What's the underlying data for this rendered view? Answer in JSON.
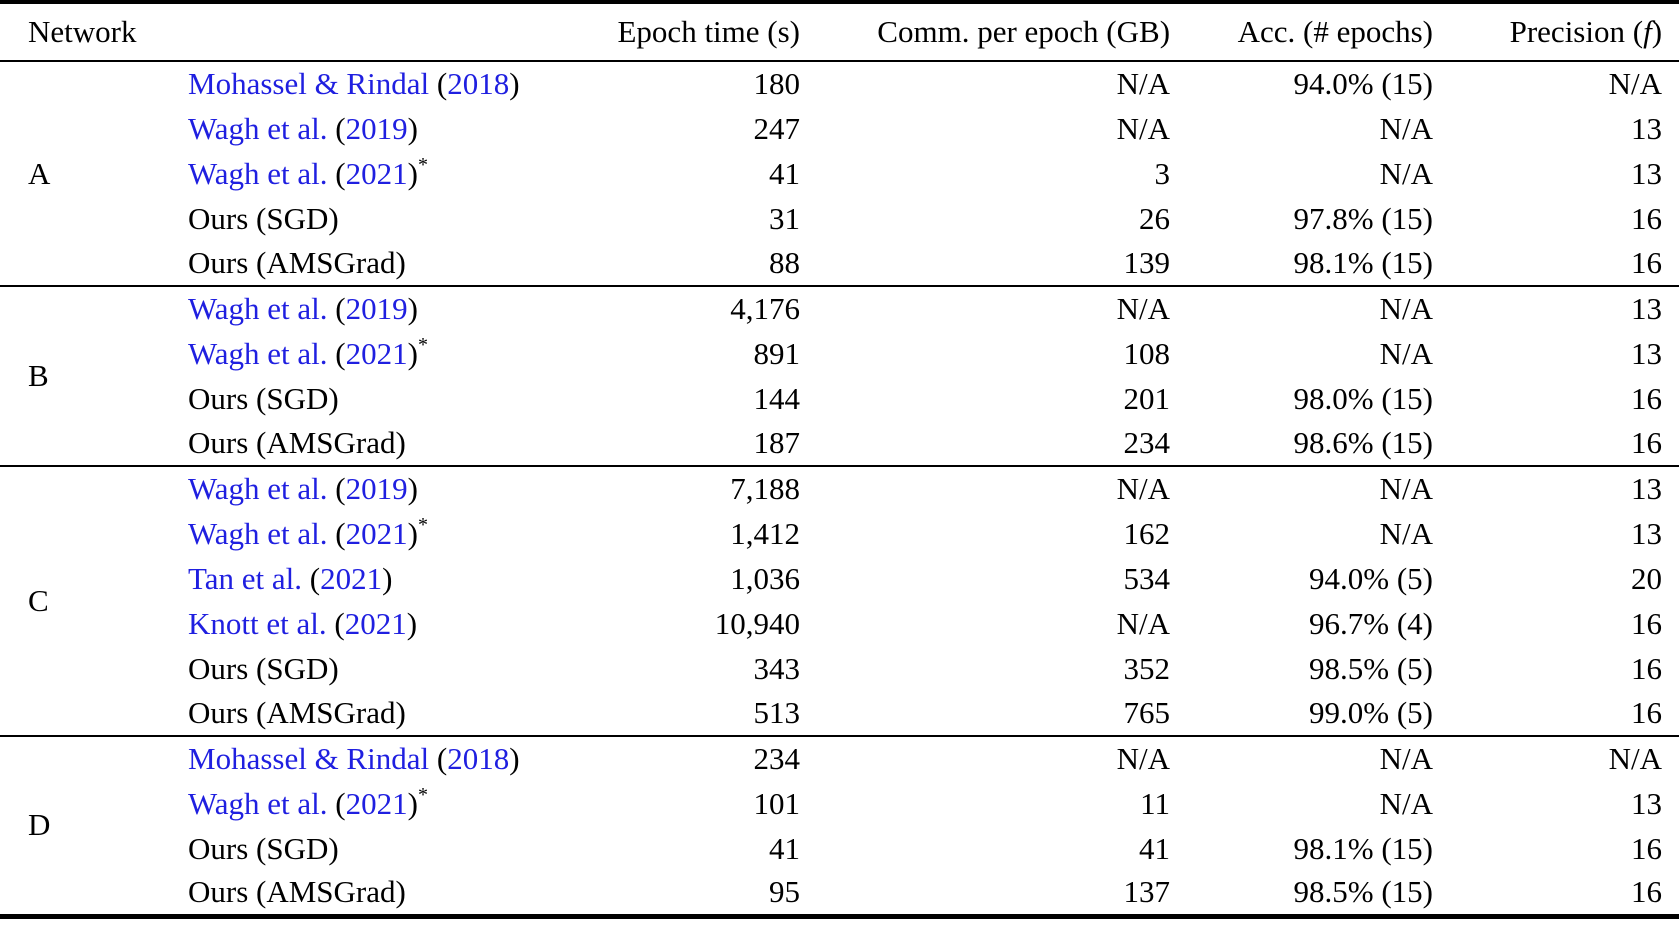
{
  "colors": {
    "background": "#ffffff",
    "text": "#000000",
    "rule": "#000000",
    "citation_link": "#1f1fe0"
  },
  "header": {
    "network": "Network",
    "epoch_time": "Epoch time (s)",
    "comm_per_epoch": "Comm. per epoch (GB)",
    "accuracy": "Acc. (# epochs)",
    "precision_prefix": "Precision (",
    "precision_symbol": "f",
    "precision_suffix": ")"
  },
  "citation_format": {
    "open": " (",
    "close": ")"
  },
  "sections": [
    {
      "network": "A",
      "rows": [
        {
          "author": "Mohassel & Rindal",
          "year": "2018",
          "epoch_time": "180",
          "comm": "N/A",
          "acc": "94.0% (15)",
          "precision": "N/A"
        },
        {
          "author": "Wagh et al.",
          "year": "2019",
          "epoch_time": "247",
          "comm": "N/A",
          "acc": "N/A",
          "precision": "13"
        },
        {
          "author": "Wagh et al.",
          "year": "2021",
          "star": "*",
          "epoch_time": "41",
          "comm": "3",
          "acc": "N/A",
          "precision": "13"
        },
        {
          "method": "Ours (SGD)",
          "epoch_time": "31",
          "comm": "26",
          "acc": "97.8% (15)",
          "precision": "16"
        },
        {
          "method": "Ours (AMSGrad)",
          "epoch_time": "88",
          "comm": "139",
          "acc": "98.1% (15)",
          "precision": "16"
        }
      ]
    },
    {
      "network": "B",
      "rows": [
        {
          "author": "Wagh et al.",
          "year": "2019",
          "epoch_time": "4,176",
          "comm": "N/A",
          "acc": "N/A",
          "precision": "13"
        },
        {
          "author": "Wagh et al.",
          "year": "2021",
          "star": "*",
          "epoch_time": "891",
          "comm": "108",
          "acc": "N/A",
          "precision": "13"
        },
        {
          "method": "Ours (SGD)",
          "epoch_time": "144",
          "comm": "201",
          "acc": "98.0% (15)",
          "precision": "16"
        },
        {
          "method": "Ours (AMSGrad)",
          "epoch_time": "187",
          "comm": "234",
          "acc": "98.6% (15)",
          "precision": "16"
        }
      ]
    },
    {
      "network": "C",
      "rows": [
        {
          "author": "Wagh et al.",
          "year": "2019",
          "epoch_time": "7,188",
          "comm": "N/A",
          "acc": "N/A",
          "precision": "13"
        },
        {
          "author": "Wagh et al.",
          "year": "2021",
          "star": "*",
          "epoch_time": "1,412",
          "comm": "162",
          "acc": "N/A",
          "precision": "13"
        },
        {
          "author": "Tan et al.",
          "year": "2021",
          "epoch_time": "1,036",
          "comm": "534",
          "acc": "94.0% (5)",
          "precision": "20"
        },
        {
          "author": "Knott et al.",
          "year": "2021",
          "epoch_time": "10,940",
          "comm": "N/A",
          "acc": "96.7% (4)",
          "precision": "16"
        },
        {
          "method": "Ours (SGD)",
          "epoch_time": "343",
          "comm": "352",
          "acc": "98.5% (5)",
          "precision": "16"
        },
        {
          "method": "Ours (AMSGrad)",
          "epoch_time": "513",
          "comm": "765",
          "acc": "99.0% (5)",
          "precision": "16"
        }
      ]
    },
    {
      "network": "D",
      "rows": [
        {
          "author": "Mohassel & Rindal",
          "year": "2018",
          "epoch_time": "234",
          "comm": "N/A",
          "acc": "N/A",
          "precision": "N/A"
        },
        {
          "author": "Wagh et al.",
          "year": "2021",
          "star": "*",
          "epoch_time": "101",
          "comm": "11",
          "acc": "N/A",
          "precision": "13"
        },
        {
          "method": "Ours (SGD)",
          "epoch_time": "41",
          "comm": "41",
          "acc": "98.1% (15)",
          "precision": "16"
        },
        {
          "method": "Ours (AMSGrad)",
          "epoch_time": "95",
          "comm": "137",
          "acc": "98.5% (15)",
          "precision": "16"
        }
      ]
    }
  ]
}
